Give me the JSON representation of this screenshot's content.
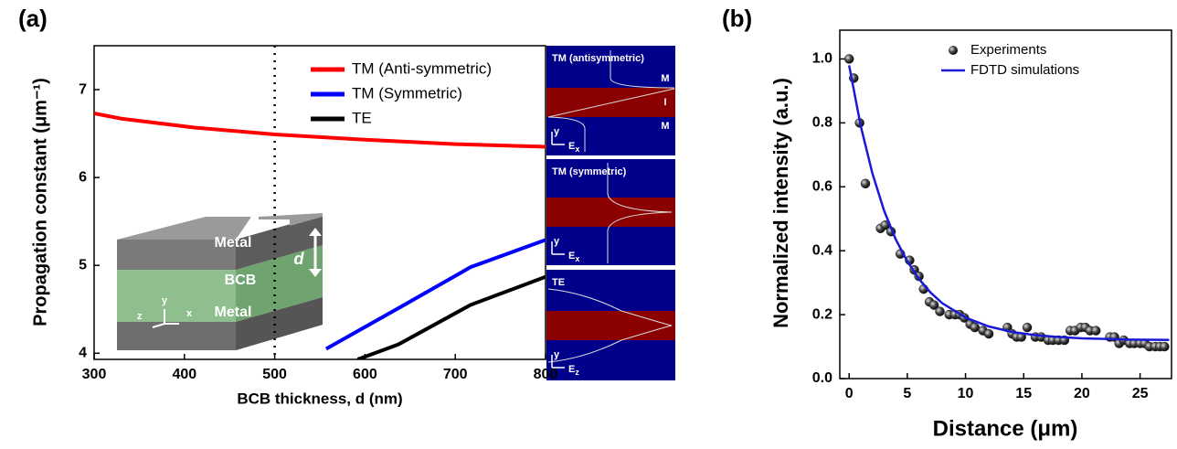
{
  "chart_data": [
    {
      "type": "line",
      "panel_label": "(a)",
      "xlabel": "BCB thickness, d (nm)",
      "ylabel": "Propagation constant (μm⁻¹)",
      "xlim": [
        300,
        800
      ],
      "ylim": [
        3.93,
        7.5
      ],
      "xticks": [
        300,
        400,
        500,
        600,
        700,
        800
      ],
      "yticks": [
        4,
        5,
        6,
        7
      ],
      "vlines": [
        500
      ],
      "series": [
        {
          "name": "TM (Anti-symmetric)",
          "color": "#ff0000",
          "x": [
            300,
            330,
            410,
            500,
            600,
            700,
            800
          ],
          "values": [
            6.73,
            6.67,
            6.57,
            6.49,
            6.43,
            6.38,
            6.35
          ]
        },
        {
          "name": "TM (Symmetric)",
          "color": "#0000ff",
          "x": [
            557,
            640,
            717,
            800
          ],
          "values": [
            4.05,
            4.53,
            4.98,
            5.29
          ]
        },
        {
          "name": "TE",
          "color": "#000000",
          "x": [
            592,
            637,
            717,
            800
          ],
          "values": [
            3.93,
            4.1,
            4.55,
            4.87
          ]
        }
      ],
      "inset": {
        "labels": [
          "Metal",
          "BCB",
          "Metal",
          "d",
          "y",
          "z",
          "x"
        ]
      },
      "mode_panels": [
        {
          "title": "TM (antisymmetric)",
          "layer_labels": [
            "M",
            "I",
            "M"
          ],
          "axis": "y",
          "field": "E",
          "field_sub": "x"
        },
        {
          "title": "TM  (symmetric)",
          "axis": "y",
          "field": "E",
          "field_sub": "x"
        },
        {
          "title": "TE",
          "axis": "y",
          "field": "E",
          "field_sub": "z"
        }
      ]
    },
    {
      "type": "scatter",
      "panel_label": "(b)",
      "xlabel": "Distance (μm)",
      "ylabel": "Normalized intensity (a.u.)",
      "xlim": [
        -0.8,
        27.7
      ],
      "ylim": [
        0,
        1.09
      ],
      "xticks": [
        0,
        5,
        10,
        15,
        20,
        25
      ],
      "yticks": [
        {
          "value": 0,
          "label": "0.0"
        },
        0.2,
        0.4,
        0.6,
        0.8,
        {
          "value": 1,
          "label": "1.0"
        }
      ],
      "series": [
        {
          "name": "Experiments",
          "type": "scatter",
          "color": "#222222",
          "x": [
            0,
            0.4,
            0.9,
            1.4,
            2.7,
            3.1,
            3.6,
            4.4,
            5.2,
            5.6,
            6.0,
            6.4,
            6.9,
            7.3,
            7.8,
            8.6,
            9.1,
            9.5,
            9.9,
            10.4,
            10.8,
            11.5,
            12.0,
            13.6,
            14.0,
            14.4,
            14.8,
            15.3,
            16.0,
            16.5,
            17.1,
            17.5,
            18.0,
            18.5,
            19.0,
            19.4,
            19.9,
            20.3,
            20.7,
            21.2,
            22.4,
            22.8,
            23.2,
            23.6,
            24.1,
            24.5,
            25.0,
            25.4,
            25.8,
            26.3,
            26.7,
            27.1
          ],
          "values": [
            1.0,
            0.94,
            0.8,
            0.61,
            0.47,
            0.48,
            0.46,
            0.39,
            0.37,
            0.34,
            0.32,
            0.28,
            0.24,
            0.23,
            0.21,
            0.2,
            0.2,
            0.2,
            0.19,
            0.17,
            0.16,
            0.15,
            0.14,
            0.16,
            0.14,
            0.13,
            0.13,
            0.16,
            0.13,
            0.13,
            0.12,
            0.12,
            0.12,
            0.12,
            0.15,
            0.15,
            0.16,
            0.16,
            0.15,
            0.15,
            0.13,
            0.13,
            0.11,
            0.12,
            0.11,
            0.11,
            0.11,
            0.11,
            0.1,
            0.1,
            0.1,
            0.1
          ]
        },
        {
          "name": "FDTD simulations",
          "type": "line",
          "color": "#1a1ad6",
          "x": [
            0,
            1,
            2,
            3,
            4,
            5,
            6,
            7,
            8,
            10,
            12,
            14,
            16,
            18,
            20,
            22,
            24,
            27.5
          ],
          "values": [
            0.98,
            0.79,
            0.642,
            0.526,
            0.436,
            0.367,
            0.312,
            0.269,
            0.236,
            0.191,
            0.163,
            0.146,
            0.136,
            0.13,
            0.126,
            0.124,
            0.122,
            0.121
          ]
        }
      ]
    }
  ]
}
